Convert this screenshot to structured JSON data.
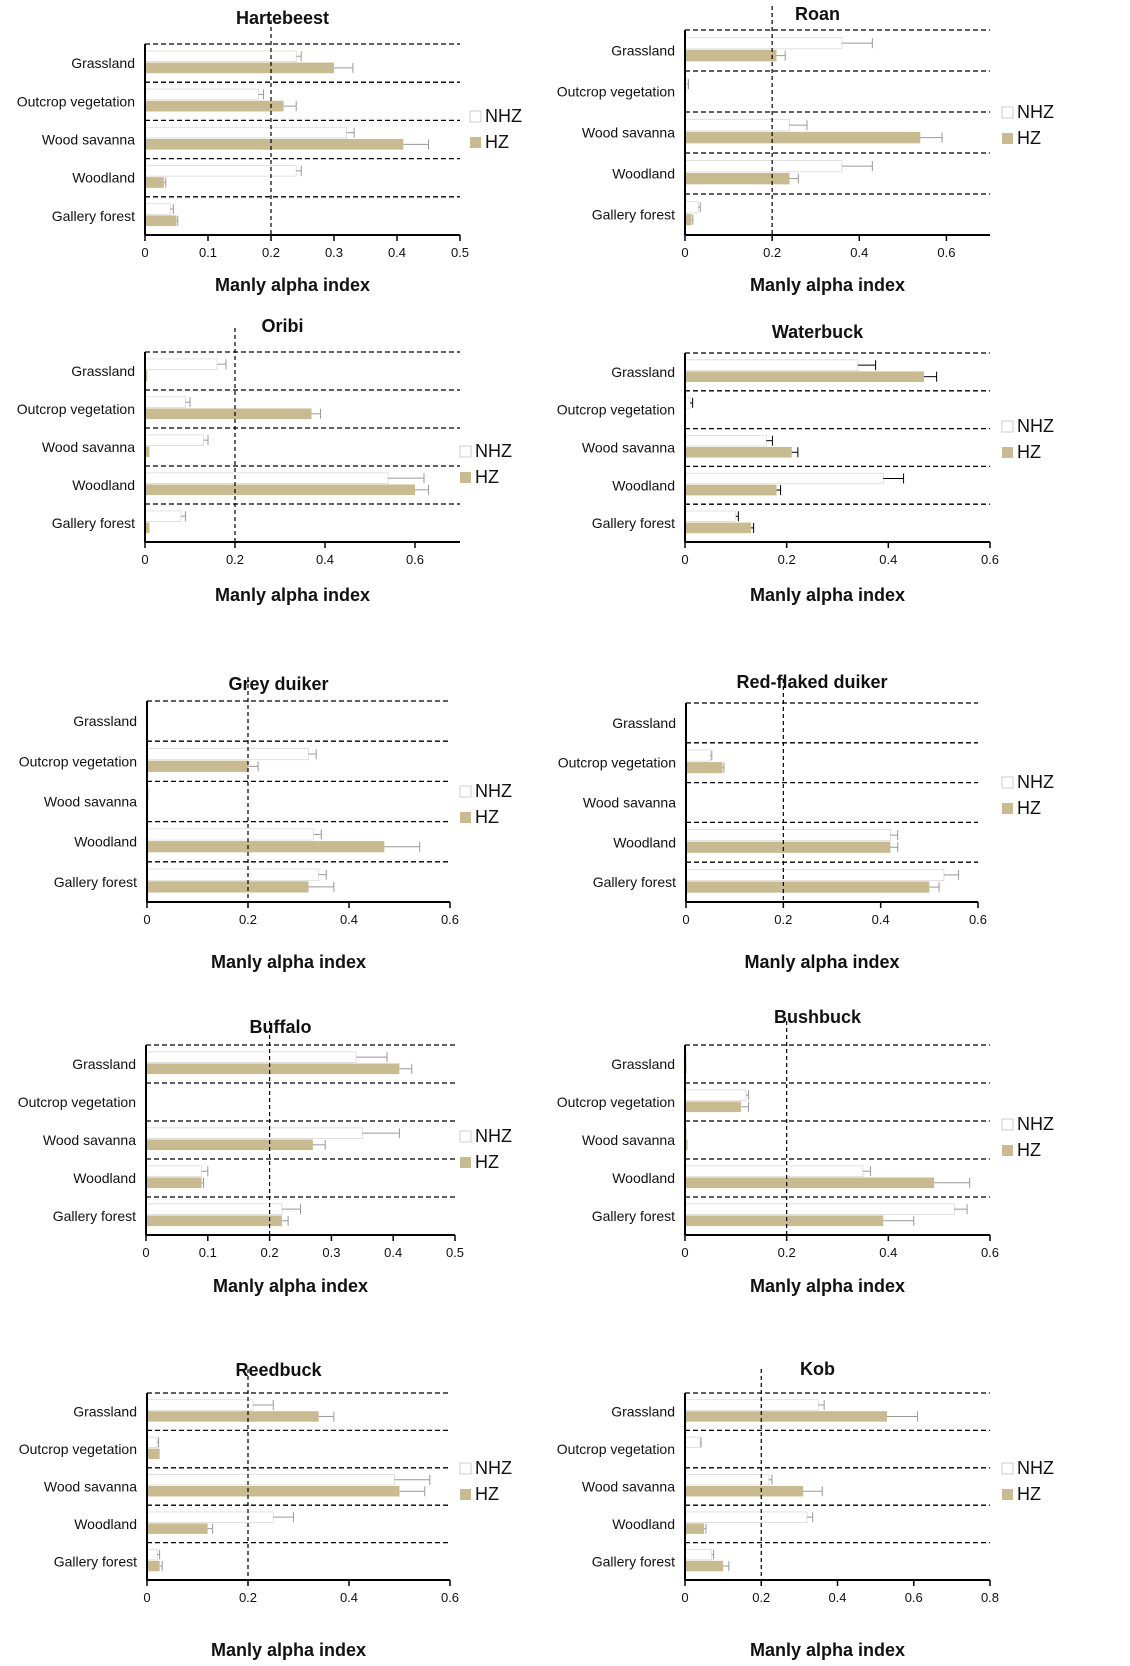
{
  "colors": {
    "NHZ": "#ffffff",
    "HZ": "#c8bb90",
    "error_bar": "#999999",
    "axis": "#000000"
  },
  "chart_data": [
    {
      "type": "bar",
      "title": "Hartebeest",
      "xlabel": "Manly alpha index",
      "ylabel": "",
      "categories": [
        "Grassland",
        "Outcrop vegetation",
        "Wood savanna",
        "Woodland",
        "Gallery forest"
      ],
      "xlim": [
        0,
        0.5
      ],
      "xticks": [
        "0",
        "0.1",
        "0.2",
        "0.3",
        "0.4",
        "0.5"
      ],
      "reference_line": 0.2,
      "grid": "dashed separators between categories",
      "legend": "right",
      "series": [
        {
          "name": "NHZ",
          "values": [
            0.24,
            0.18,
            0.32,
            0.24,
            0.04
          ],
          "errors": [
            0.008,
            0.008,
            0.012,
            0.008,
            0.005
          ]
        },
        {
          "name": "HZ",
          "values": [
            0.3,
            0.22,
            0.41,
            0.03,
            0.05
          ],
          "errors": [
            0.03,
            0.02,
            0.04,
            0.003,
            0.002
          ]
        }
      ]
    },
    {
      "type": "bar",
      "title": "Roan",
      "xlabel": "Manly alpha index",
      "ylabel": "",
      "categories": [
        "Grassland",
        "Outcrop vegetation",
        "Wood savanna",
        "Woodland",
        "Gallery forest"
      ],
      "xlim": [
        0,
        0.7
      ],
      "xticks": [
        "0",
        "0.2",
        "0.4",
        "0.6"
      ],
      "reference_line": 0.2,
      "grid": "dashed separators between categories",
      "legend": "right",
      "series": [
        {
          "name": "NHZ",
          "values": [
            0.36,
            0.005,
            0.24,
            0.36,
            0.03
          ],
          "errors": [
            0.07,
            0.003,
            0.04,
            0.07,
            0.005
          ]
        },
        {
          "name": "HZ",
          "values": [
            0.21,
            0.0,
            0.54,
            0.24,
            0.015
          ],
          "errors": [
            0.02,
            0.0,
            0.05,
            0.02,
            0.003
          ]
        }
      ]
    },
    {
      "type": "bar",
      "title": "Oribi",
      "xlabel": "Manly alpha index",
      "ylabel": "",
      "categories": [
        "Grassland",
        "Outcrop vegetation",
        "Wood savanna",
        "Woodland",
        "Gallery forest"
      ],
      "xlim": [
        0,
        0.7
      ],
      "xticks": [
        "0",
        "0.2",
        "0.4",
        "0.6"
      ],
      "reference_line": 0.2,
      "grid": "dashed separators between categories",
      "legend": "right",
      "series": [
        {
          "name": "NHZ",
          "values": [
            0.16,
            0.09,
            0.13,
            0.54,
            0.08
          ],
          "errors": [
            0.02,
            0.01,
            0.01,
            0.08,
            0.01
          ]
        },
        {
          "name": "HZ",
          "values": [
            0.005,
            0.37,
            0.01,
            0.6,
            0.01
          ],
          "errors": [
            0.0,
            0.02,
            0.0,
            0.03,
            0.0
          ]
        }
      ]
    },
    {
      "type": "bar",
      "title": "Waterbuck",
      "xlabel": "Manly alpha index",
      "ylabel": "",
      "categories": [
        "Grassland",
        "Outcrop vegetation",
        "Wood savanna",
        "Woodland",
        "Gallery forest"
      ],
      "xlim": [
        0,
        0.6
      ],
      "xticks": [
        "0",
        "0.2",
        "0.4",
        "0.6"
      ],
      "reference_line": null,
      "grid": "dashed separators between categories",
      "legend": "right",
      "series": [
        {
          "name": "NHZ",
          "values": [
            0.34,
            0.01,
            0.16,
            0.39,
            0.1
          ],
          "errors": [
            0.035,
            0.005,
            0.012,
            0.04,
            0.005
          ]
        },
        {
          "name": "HZ",
          "values": [
            0.47,
            0.0,
            0.21,
            0.18,
            0.13
          ],
          "errors": [
            0.025,
            0.0,
            0.012,
            0.008,
            0.005
          ]
        }
      ]
    },
    {
      "type": "bar",
      "title": "Grey duiker",
      "xlabel": "Manly alpha index",
      "ylabel": "",
      "categories": [
        "Grassland",
        "Outcrop vegetation",
        "Wood savanna",
        "Woodland",
        "Gallery forest"
      ],
      "xlim": [
        0,
        0.6
      ],
      "xticks": [
        "0",
        "0.2",
        "0.4",
        "0.6"
      ],
      "reference_line": 0.2,
      "grid": "dashed separators between categories",
      "legend": "right",
      "series": [
        {
          "name": "NHZ",
          "values": [
            0.0,
            0.32,
            0.003,
            0.33,
            0.34
          ],
          "errors": [
            0.0,
            0.015,
            0.0,
            0.015,
            0.015
          ]
        },
        {
          "name": "HZ",
          "values": [
            0.0,
            0.2,
            0.0,
            0.47,
            0.32
          ],
          "errors": [
            0.0,
            0.02,
            0.0,
            0.07,
            0.05
          ]
        }
      ]
    },
    {
      "type": "bar",
      "title": "Red-flaked duiker",
      "xlabel": "Manly alpha index",
      "ylabel": "",
      "categories": [
        "Grassland",
        "Outcrop vegetation",
        "Wood savanna",
        "Woodland",
        "Gallery forest"
      ],
      "xlim": [
        0,
        0.6
      ],
      "xticks": [
        "0",
        "0.2",
        "0.4",
        "0.6"
      ],
      "reference_line": 0.2,
      "grid": "dashed separators between categories",
      "legend": "right",
      "series": [
        {
          "name": "NHZ",
          "values": [
            0.0,
            0.05,
            0.0,
            0.42,
            0.53
          ],
          "errors": [
            0.0,
            0.003,
            0.0,
            0.015,
            0.03
          ]
        },
        {
          "name": "HZ",
          "values": [
            0.0,
            0.075,
            0.0,
            0.42,
            0.5
          ],
          "errors": [
            0.0,
            0.003,
            0.0,
            0.015,
            0.02
          ]
        }
      ]
    },
    {
      "type": "bar",
      "title": "Buffalo",
      "xlabel": "Manly alpha index",
      "ylabel": "",
      "categories": [
        "Grassland",
        "Outcrop vegetation",
        "Wood savanna",
        "Woodland",
        "Gallery forest"
      ],
      "xlim": [
        0,
        0.5
      ],
      "xticks": [
        "0",
        "0.1",
        "0.2",
        "0.3",
        "0.4",
        "0.5"
      ],
      "reference_line": 0.2,
      "grid": "dashed separators between categories",
      "legend": "right",
      "series": [
        {
          "name": "NHZ",
          "values": [
            0.34,
            0.0,
            0.35,
            0.09,
            0.22
          ],
          "errors": [
            0.05,
            0.0,
            0.06,
            0.01,
            0.03
          ]
        },
        {
          "name": "HZ",
          "values": [
            0.41,
            0.0,
            0.27,
            0.09,
            0.22
          ],
          "errors": [
            0.02,
            0.0,
            0.02,
            0.003,
            0.01
          ]
        }
      ]
    },
    {
      "type": "bar",
      "title": "Bushbuck",
      "xlabel": "Manly alpha index",
      "ylabel": "",
      "categories": [
        "Grassland",
        "Outcrop vegetation",
        "Wood savanna",
        "Woodland",
        "Gallery forest"
      ],
      "xlim": [
        0,
        0.6
      ],
      "xticks": [
        "0",
        "0.2",
        "0.4",
        "0.6"
      ],
      "reference_line": 0.2,
      "grid": "dashed separators between categories",
      "legend": "right",
      "series": [
        {
          "name": "NHZ",
          "values": [
            0.003,
            0.12,
            0.003,
            0.35,
            0.53
          ],
          "errors": [
            0.0,
            0.005,
            0.0,
            0.015,
            0.025
          ]
        },
        {
          "name": "HZ",
          "values": [
            0.003,
            0.11,
            0.005,
            0.49,
            0.39
          ],
          "errors": [
            0.0,
            0.015,
            0.0,
            0.07,
            0.06
          ]
        }
      ]
    },
    {
      "type": "bar",
      "title": "Reedbuck",
      "xlabel": "Manly alpha index",
      "ylabel": "",
      "categories": [
        "Grassland",
        "Outcrop vegetation",
        "Wood savanna",
        "Woodland",
        "Gallery forest"
      ],
      "xlim": [
        0,
        0.6
      ],
      "xticks": [
        "0",
        "0.2",
        "0.4",
        "0.6"
      ],
      "reference_line": 0.2,
      "grid": "dashed separators between categories",
      "legend": "right",
      "series": [
        {
          "name": "NHZ",
          "values": [
            0.21,
            0.02,
            0.49,
            0.25,
            0.02
          ],
          "errors": [
            0.04,
            0.003,
            0.07,
            0.04,
            0.005
          ]
        },
        {
          "name": "HZ",
          "values": [
            0.34,
            0.025,
            0.5,
            0.12,
            0.025
          ],
          "errors": [
            0.03,
            0.0,
            0.05,
            0.01,
            0.005
          ]
        }
      ]
    },
    {
      "type": "bar",
      "title": "Kob",
      "xlabel": "Manly alpha index",
      "ylabel": "",
      "categories": [
        "Grassland",
        "Outcrop vegetation",
        "Wood savanna",
        "Woodland",
        "Gallery forest"
      ],
      "xlim": [
        0,
        0.8
      ],
      "xticks": [
        "0",
        "0.2",
        "0.4",
        "0.6",
        "0.8"
      ],
      "reference_line": 0.2,
      "grid": "dashed separators between categories",
      "legend": "right",
      "series": [
        {
          "name": "NHZ",
          "values": [
            0.35,
            0.04,
            0.22,
            0.32,
            0.07
          ],
          "errors": [
            0.015,
            0.002,
            0.008,
            0.015,
            0.005
          ]
        },
        {
          "name": "HZ",
          "values": [
            0.53,
            0.0,
            0.31,
            0.05,
            0.1
          ],
          "errors": [
            0.08,
            0.0,
            0.05,
            0.005,
            0.015
          ]
        }
      ]
    }
  ]
}
